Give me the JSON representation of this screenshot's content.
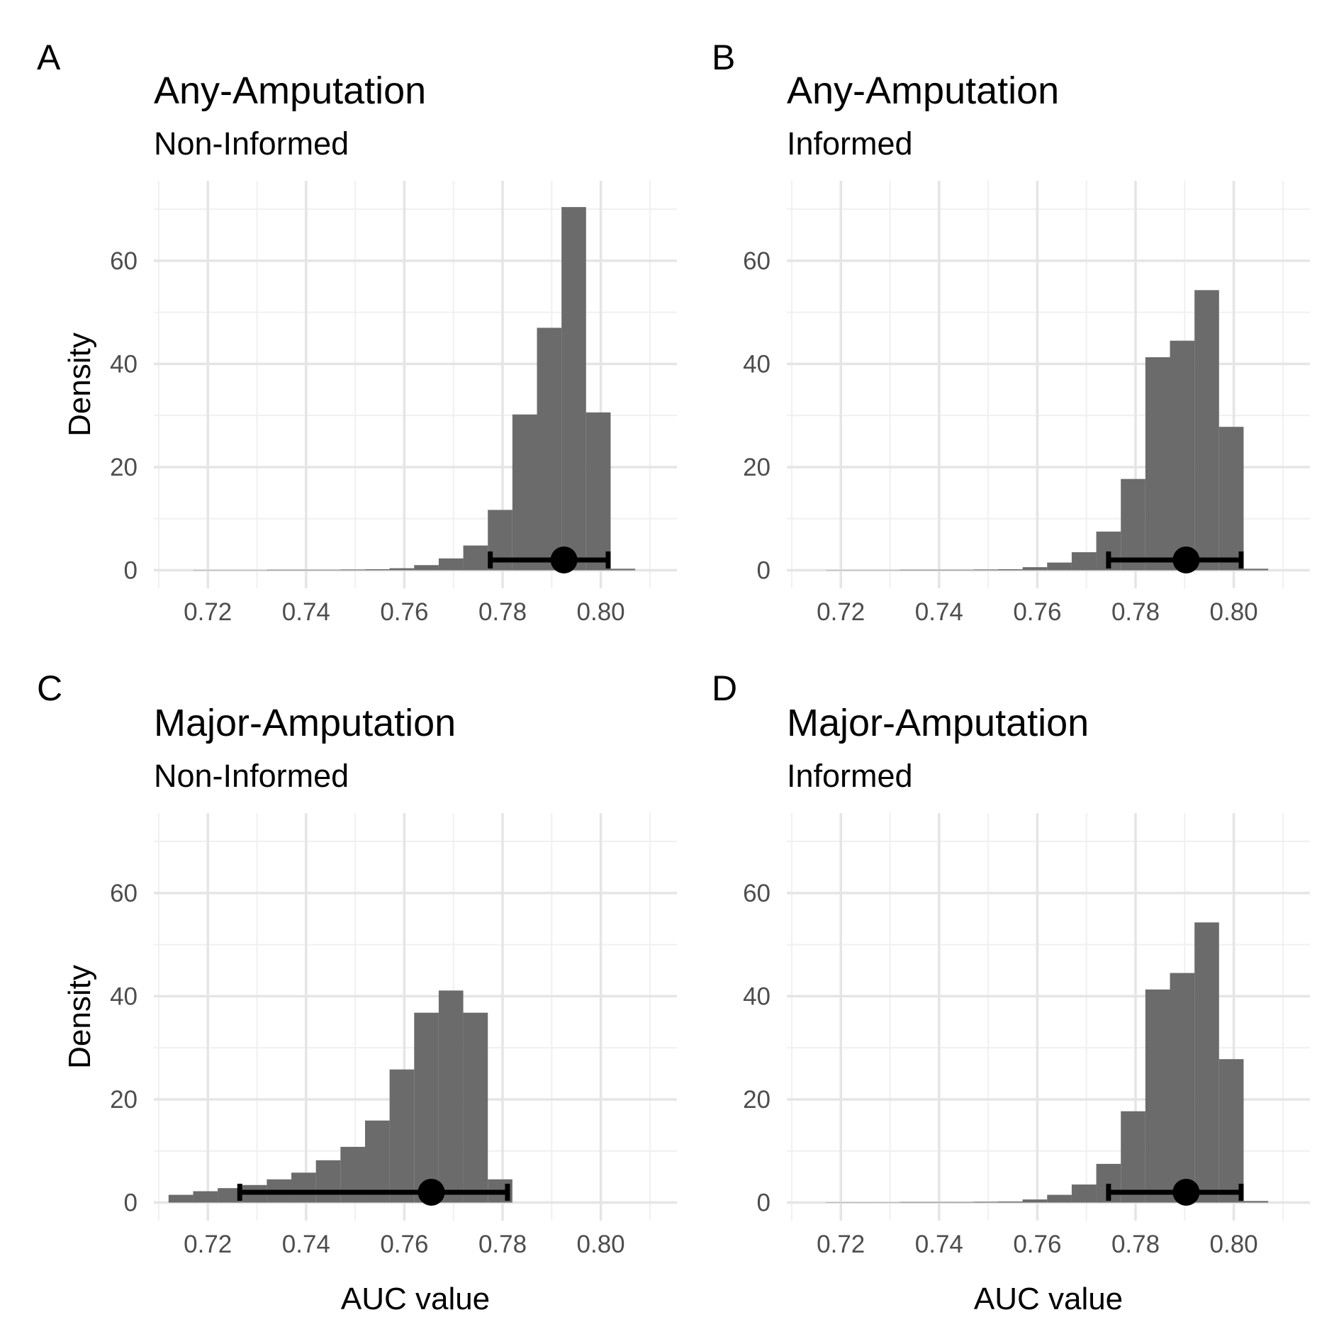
{
  "figure": {
    "panel_letters": [
      "A",
      "B",
      "C",
      "D"
    ]
  },
  "chart_data": [
    {
      "panel": "A",
      "type": "bar",
      "title": "Any-Amputation",
      "subtitle": "Non-Informed",
      "xlabel": "",
      "ylabel": "Density",
      "xlim": [
        0.709,
        0.8155
      ],
      "ylim": [
        -3.5,
        75.5
      ],
      "xticks": [
        "0.72",
        "0.74",
        "0.76",
        "0.78",
        "0.80"
      ],
      "yticks": [
        "0",
        "20",
        "40",
        "60"
      ],
      "grid": true,
      "bin_width": 0.005,
      "bin_edges": [
        0.712,
        0.717,
        0.722,
        0.727,
        0.732,
        0.737,
        0.742,
        0.747,
        0.752,
        0.757,
        0.762,
        0.767,
        0.772,
        0.777,
        0.782,
        0.787,
        0.792,
        0.797,
        0.802,
        0.807
      ],
      "values": [
        0,
        0.05,
        0.05,
        0.05,
        0.1,
        0.1,
        0.1,
        0.15,
        0.2,
        0.4,
        1.0,
        2.3,
        4.8,
        11.7,
        30.2,
        47.0,
        70.4,
        30.6,
        0.3
      ],
      "point_estimate": 0.7925,
      "ci": [
        0.7775,
        0.8015
      ],
      "marker_y": 2
    },
    {
      "panel": "B",
      "type": "bar",
      "title": "Any-Amputation",
      "subtitle": "Informed",
      "xlabel": "",
      "ylabel": "",
      "xlim": [
        0.709,
        0.8155
      ],
      "ylim": [
        -3.5,
        75.5
      ],
      "xticks": [
        "0.72",
        "0.74",
        "0.76",
        "0.78",
        "0.80"
      ],
      "yticks": [
        "0",
        "20",
        "40",
        "60"
      ],
      "grid": true,
      "bin_width": 0.005,
      "bin_edges": [
        0.712,
        0.717,
        0.722,
        0.727,
        0.732,
        0.737,
        0.742,
        0.747,
        0.752,
        0.757,
        0.762,
        0.767,
        0.772,
        0.777,
        0.782,
        0.787,
        0.792,
        0.797,
        0.802,
        0.807
      ],
      "values": [
        0,
        0.05,
        0.05,
        0.05,
        0.1,
        0.1,
        0.1,
        0.15,
        0.2,
        0.6,
        1.5,
        3.5,
        7.5,
        17.7,
        41.3,
        44.5,
        54.3,
        27.8,
        0.3
      ],
      "point_estimate": 0.7903,
      "ci": [
        0.7745,
        0.8015
      ],
      "marker_y": 2
    },
    {
      "panel": "C",
      "type": "bar",
      "title": "Major-Amputation",
      "subtitle": "Non-Informed",
      "xlabel": "AUC value",
      "ylabel": "Density",
      "xlim": [
        0.709,
        0.8155
      ],
      "ylim": [
        -3.5,
        75.5
      ],
      "xticks": [
        "0.72",
        "0.74",
        "0.76",
        "0.78",
        "0.80"
      ],
      "yticks": [
        "0",
        "20",
        "40",
        "60"
      ],
      "grid": true,
      "bin_width": 0.005,
      "bin_edges": [
        0.712,
        0.717,
        0.722,
        0.727,
        0.732,
        0.737,
        0.742,
        0.747,
        0.752,
        0.757,
        0.762,
        0.767,
        0.772,
        0.777,
        0.782
      ],
      "values": [
        1.5,
        2.2,
        2.8,
        3.4,
        4.5,
        5.8,
        8.2,
        10.8,
        15.9,
        25.8,
        36.8,
        41.1,
        36.8,
        4.5
      ],
      "point_estimate": 0.7655,
      "ci": [
        0.7265,
        0.781
      ],
      "marker_y": 2
    },
    {
      "panel": "D",
      "type": "bar",
      "title": "Major-Amputation",
      "subtitle": "Informed",
      "xlabel": "AUC value",
      "ylabel": "",
      "xlim": [
        0.709,
        0.8155
      ],
      "ylim": [
        -3.5,
        75.5
      ],
      "xticks": [
        "0.72",
        "0.74",
        "0.76",
        "0.78",
        "0.80"
      ],
      "yticks": [
        "0",
        "20",
        "40",
        "60"
      ],
      "grid": true,
      "bin_width": 0.005,
      "bin_edges": [
        0.712,
        0.717,
        0.722,
        0.727,
        0.732,
        0.737,
        0.742,
        0.747,
        0.752,
        0.757,
        0.762,
        0.767,
        0.772,
        0.777,
        0.782,
        0.787,
        0.792,
        0.797,
        0.802,
        0.807
      ],
      "values": [
        0,
        0.05,
        0.05,
        0.05,
        0.1,
        0.1,
        0.1,
        0.15,
        0.2,
        0.6,
        1.5,
        3.5,
        7.5,
        17.7,
        41.3,
        44.5,
        54.3,
        27.8,
        0.3
      ],
      "point_estimate": 0.7903,
      "ci": [
        0.7745,
        0.8015
      ],
      "marker_y": 2
    }
  ],
  "colors": {
    "bar": "#6b6b6b",
    "grid_major": "#e5e5e5",
    "grid_minor": "#f0f0f0",
    "marker": "#000000",
    "tick_text": "#4d4d4d"
  }
}
